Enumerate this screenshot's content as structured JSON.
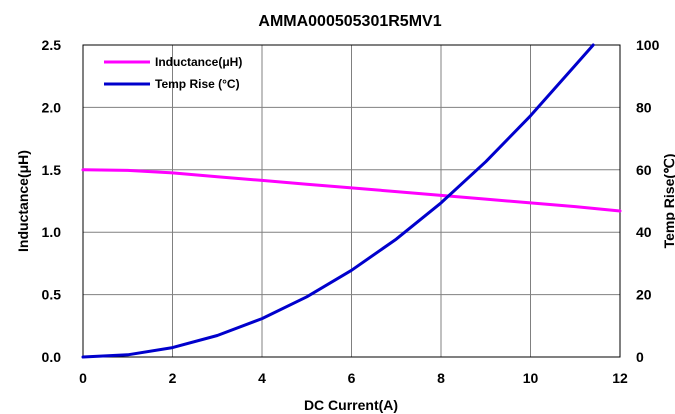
{
  "chart_data": {
    "type": "line",
    "title": "AMMA000505301R5MV1",
    "xlabel": "DC Current(A)",
    "ylabel_left": "Inductance(μH)",
    "ylabel_right": "Temp Rise(℃)",
    "xlim": [
      0,
      12
    ],
    "ylim_left": [
      0,
      2.5
    ],
    "ylim_right": [
      0,
      100
    ],
    "x_ticks": [
      "0",
      "2",
      "4",
      "6",
      "8",
      "10",
      "12"
    ],
    "y_left_ticks": [
      "0.0",
      "0.5",
      "1.0",
      "1.5",
      "2.0",
      "2.5"
    ],
    "y_right_ticks": [
      "0",
      "20",
      "40",
      "60",
      "80",
      "100"
    ],
    "grid": true,
    "legend_position": "top-left",
    "series": [
      {
        "name": "Inductance(μH)",
        "axis": "left",
        "color": "#ff00ff",
        "x": [
          0,
          1,
          2,
          3,
          4,
          5,
          6,
          7,
          8,
          9,
          10,
          11,
          12
        ],
        "y": [
          1.5,
          1.495,
          1.475,
          1.445,
          1.415,
          1.385,
          1.355,
          1.325,
          1.295,
          1.265,
          1.235,
          1.205,
          1.17
        ]
      },
      {
        "name": "Temp Rise (°C)",
        "axis": "right",
        "color": "#0000cc",
        "x": [
          0,
          1,
          2,
          3,
          4,
          5,
          6,
          7,
          8,
          9,
          10,
          11,
          11.4
        ],
        "y": [
          0,
          0.7,
          3,
          6.9,
          12.3,
          19.3,
          27.8,
          37.8,
          49.4,
          62.6,
          77.3,
          93.5,
          100
        ]
      }
    ]
  }
}
